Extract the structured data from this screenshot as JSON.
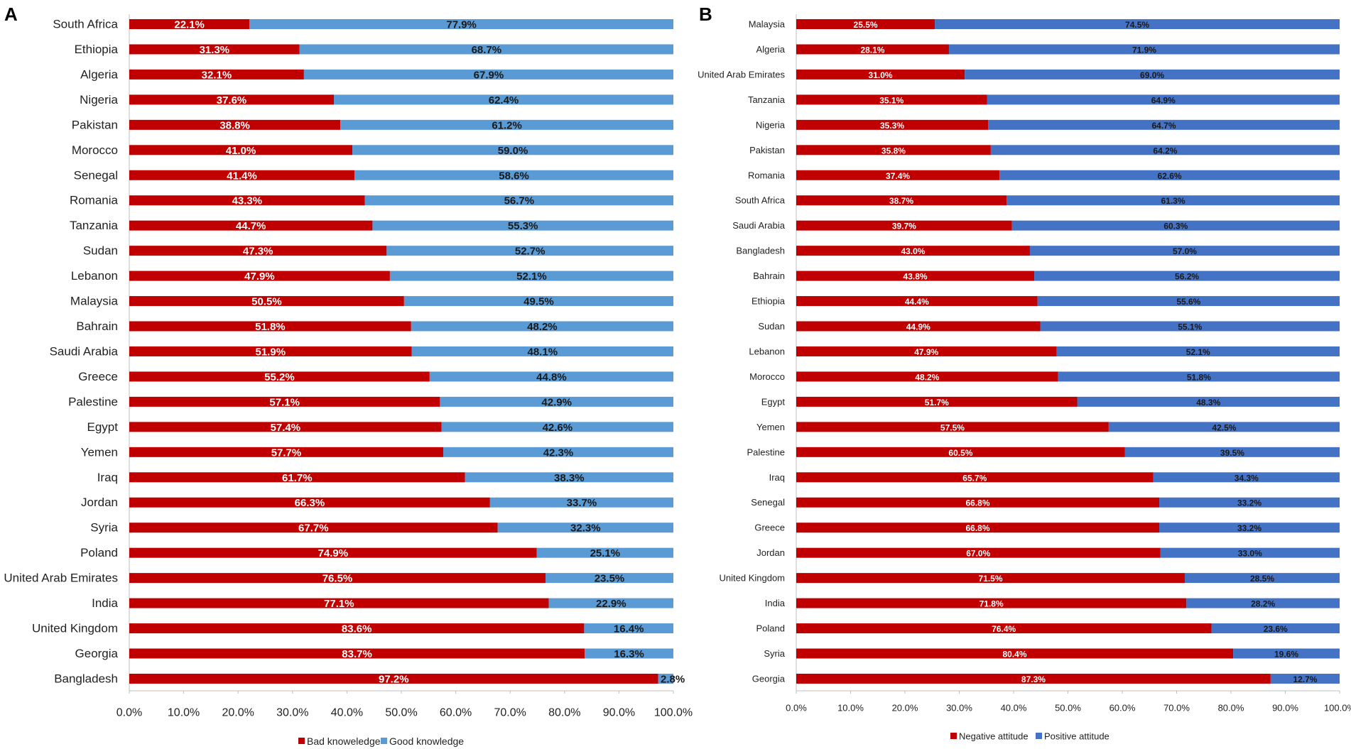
{
  "colors": {
    "red": "#c00000",
    "lightblue": "#5b9bd5",
    "blue": "#4472c4",
    "axis": "#bfbfbf",
    "text": "#222222"
  },
  "chart_data": [
    {
      "panel_label": "A",
      "type": "bar",
      "orientation": "horizontal",
      "stacked": true,
      "categories": [
        "South Africa",
        "Ethiopia",
        "Algeria",
        "Nigeria",
        "Pakistan",
        "Morocco",
        "Senegal",
        "Romania",
        "Tanzania",
        "Sudan",
        "Lebanon",
        "Malaysia",
        "Bahrain",
        "Saudi Arabia",
        "Greece",
        "Palestine",
        "Egypt",
        "Yemen",
        "Iraq",
        "Jordan",
        "Syria",
        "Poland",
        "United Arab Emirates",
        "India",
        "United Kingdom",
        "Georgia",
        "Bangladesh"
      ],
      "series": [
        {
          "name": "Bad knoweledge",
          "color": "#c00000",
          "values": [
            22.1,
            31.3,
            32.1,
            37.6,
            38.8,
            41.0,
            41.4,
            43.3,
            44.7,
            47.3,
            47.9,
            50.5,
            51.8,
            51.9,
            55.2,
            57.1,
            57.4,
            57.7,
            61.7,
            66.3,
            67.7,
            74.9,
            76.5,
            77.1,
            83.6,
            83.7,
            97.2
          ],
          "labels": [
            "22.1%",
            "31.3%",
            "32.1%",
            "37.6%",
            "38.8%",
            "41.0%",
            "41.4%",
            "43.3%",
            "44.7%",
            "47.3%",
            "47.9%",
            "50.5%",
            "51.8%",
            "51.9%",
            "55.2%",
            "57.1%",
            "57.4%",
            "57.7%",
            "61.7%",
            "66.3%",
            "67.7%",
            "74.9%",
            "76.5%",
            "77.1%",
            "83.6%",
            "83.7%",
            "97.2%"
          ]
        },
        {
          "name": "Good knowledge",
          "color": "#5b9bd5",
          "values": [
            77.9,
            68.7,
            67.9,
            62.4,
            61.2,
            59.0,
            58.6,
            56.7,
            55.3,
            52.7,
            52.1,
            49.5,
            48.2,
            48.1,
            44.8,
            42.9,
            42.6,
            42.3,
            38.3,
            33.7,
            32.3,
            25.1,
            23.5,
            22.9,
            16.4,
            16.3,
            2.8
          ],
          "labels": [
            "77.9%",
            "68.7%",
            "67.9%",
            "62.4%",
            "61.2%",
            "59.0%",
            "58.6%",
            "56.7%",
            "55.3%",
            "52.7%",
            "52.1%",
            "49.5%",
            "48.2%",
            "48.1%",
            "44.8%",
            "42.9%",
            "42.6%",
            "42.3%",
            "38.3%",
            "33.7%",
            "32.3%",
            "25.1%",
            "23.5%",
            "22.9%",
            "16.4%",
            "16.3%",
            "2.8%"
          ]
        }
      ],
      "xlim": [
        0,
        100
      ],
      "xticks": [
        "0.0%",
        "10.0%",
        "20.0%",
        "30.0%",
        "40.0%",
        "50.0%",
        "60.0%",
        "70.0%",
        "80.0%",
        "90.0%",
        "100.0%"
      ],
      "legend": "bottom"
    },
    {
      "panel_label": "B",
      "type": "bar",
      "orientation": "horizontal",
      "stacked": true,
      "categories": [
        "Malaysia",
        "Algeria",
        "United Arab Emirates",
        "Tanzania",
        "Nigeria",
        "Pakistan",
        "Romania",
        "South Africa",
        "Saudi Arabia",
        "Bangladesh",
        "Bahrain",
        "Ethiopia",
        "Sudan",
        "Lebanon",
        "Morocco",
        "Egypt",
        "Yemen",
        "Palestine",
        "Iraq",
        "Senegal",
        "Greece",
        "Jordan",
        "United Kingdom",
        "India",
        "Poland",
        "Syria",
        "Georgia"
      ],
      "series": [
        {
          "name": "Negative attitude",
          "color": "#c00000",
          "values": [
            25.5,
            28.1,
            31.0,
            35.1,
            35.3,
            35.8,
            37.4,
            38.7,
            39.7,
            43.0,
            43.8,
            44.4,
            44.9,
            47.9,
            48.2,
            51.7,
            57.5,
            60.5,
            65.7,
            66.8,
            66.8,
            67.0,
            71.5,
            71.8,
            76.4,
            80.4,
            87.3
          ],
          "labels": [
            "25.5%",
            "28.1%",
            "31.0%",
            "35.1%",
            "35.3%",
            "35.8%",
            "37.4%",
            "38.7%",
            "39.7%",
            "43.0%",
            "43.8%",
            "44.4%",
            "44.9%",
            "47.9%",
            "48.2%",
            "51.7%",
            "57.5%",
            "60.5%",
            "65.7%",
            "66.8%",
            "66.8%",
            "67.0%",
            "71.5%",
            "71.8%",
            "76.4%",
            "80.4%",
            "87.3%"
          ]
        },
        {
          "name": "Positive attitude",
          "color": "#4472c4",
          "values": [
            74.5,
            71.9,
            69.0,
            64.9,
            64.7,
            64.2,
            62.6,
            61.3,
            60.3,
            57.0,
            56.2,
            55.6,
            55.1,
            52.1,
            51.8,
            48.3,
            42.5,
            39.5,
            34.3,
            33.2,
            33.2,
            33.0,
            28.5,
            28.2,
            23.6,
            19.6,
            12.7
          ],
          "labels": [
            "74.5%",
            "71.9%",
            "69.0%",
            "64.9%",
            "64.7%",
            "64.2%",
            "62.6%",
            "61.3%",
            "60.3%",
            "57.0%",
            "56.2%",
            "55.6%",
            "55.1%",
            "52.1%",
            "51.8%",
            "48.3%",
            "42.5%",
            "39.5%",
            "34.3%",
            "33.2%",
            "33.2%",
            "33.0%",
            "28.5%",
            "28.2%",
            "23.6%",
            "19.6%",
            "12.7%"
          ]
        }
      ],
      "xlim": [
        0,
        100
      ],
      "xticks": [
        "0.0%",
        "10.0%",
        "20.0%",
        "30.0%",
        "40.0%",
        "50.0%",
        "60.0%",
        "70.0%",
        "80.0%",
        "90.0%",
        "100.0%"
      ],
      "legend": "bottom"
    }
  ]
}
